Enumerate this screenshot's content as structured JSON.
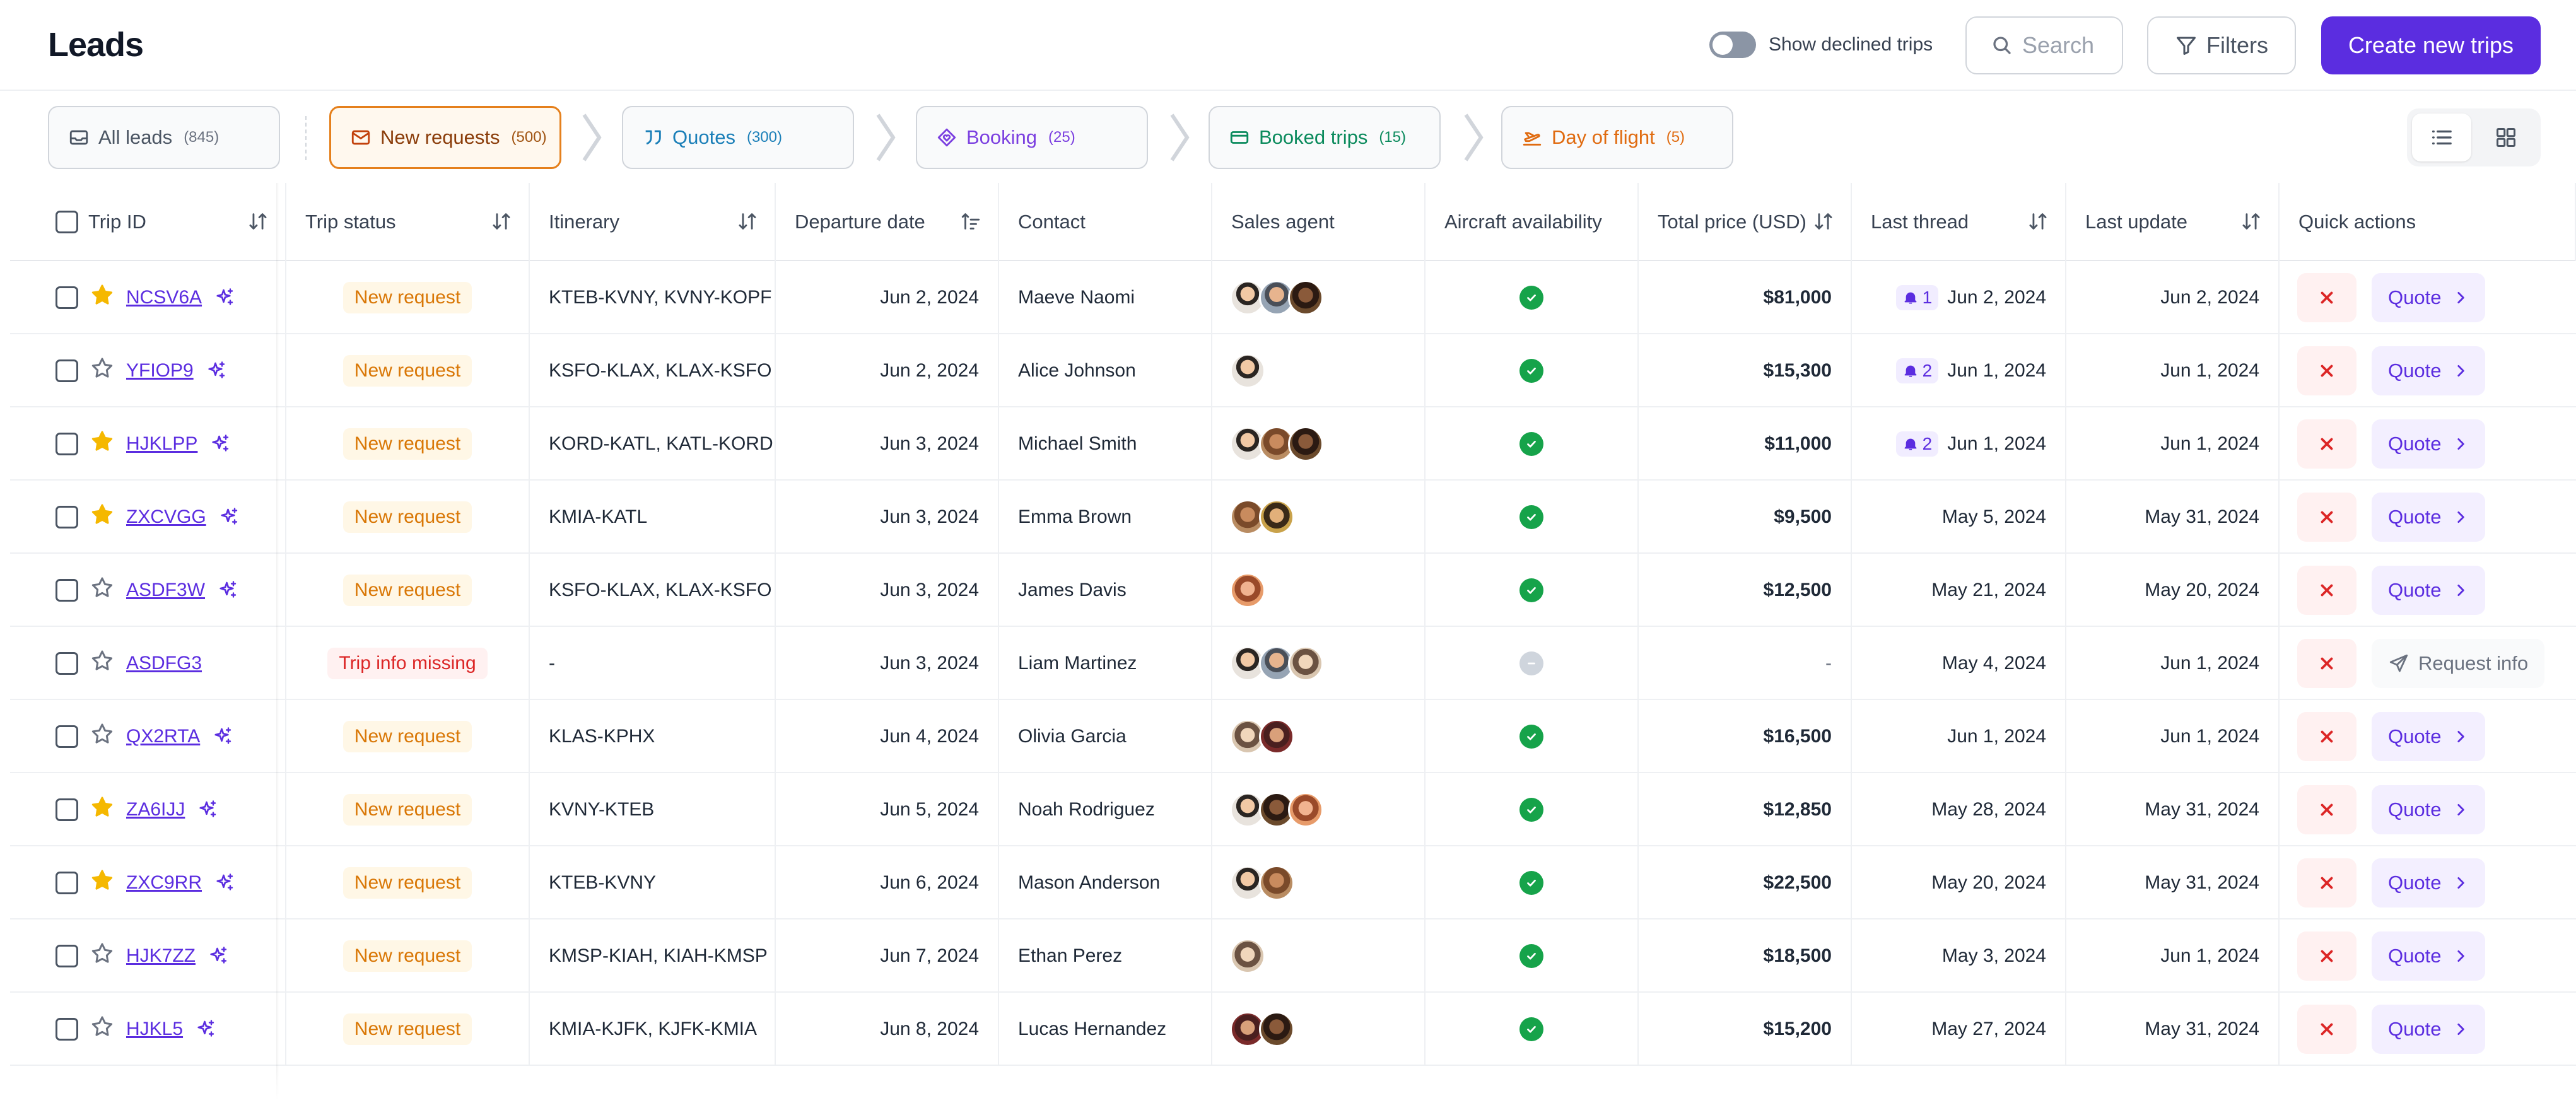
{
  "header": {
    "title": "Leads",
    "show_declined_label": "Show declined trips",
    "search_placeholder": "Search",
    "filters_label": "Filters",
    "create_label": "Create new trips"
  },
  "pipeline": {
    "stages": [
      {
        "label": "All leads",
        "count": "(845)",
        "icon": "inbox-icon"
      },
      {
        "label": "New requests",
        "count": "(500)",
        "icon": "mail-icon",
        "active": true
      },
      {
        "label": "Quotes",
        "count": "(300)",
        "icon": "quote-icon"
      },
      {
        "label": "Booking",
        "count": "(25)",
        "icon": "diamond-heart-icon"
      },
      {
        "label": "Booked trips",
        "count": "(15)",
        "icon": "ticket-icon"
      },
      {
        "label": "Day of flight",
        "count": "(5)",
        "icon": "plane-takeoff-icon"
      }
    ],
    "view_modes": [
      "list-view-icon",
      "grid-view-icon"
    ]
  },
  "table": {
    "columns": [
      "Trip ID",
      "Trip status",
      "Itinerary",
      "Departure date",
      "Contact",
      "Sales agent",
      "Aircraft availability",
      "Total price (USD)",
      "Last thread",
      "Last update",
      "Quick actions"
    ],
    "rows": [
      {
        "id": "NCSV6A",
        "starred": true,
        "status": "New request",
        "itinerary": "KTEB-KVNY, KVNY-KOPF",
        "departure": "Jun 2, 2024",
        "contact": "Maeve Naomi",
        "agents": [
          "av1",
          "av2",
          "av3"
        ],
        "available": true,
        "price": "$81,000",
        "thread_count": "1",
        "last_thread": "Jun 2, 2024",
        "last_update": "Jun 2, 2024",
        "action": "Quote"
      },
      {
        "id": "YFIOP9",
        "starred": false,
        "status": "New request",
        "itinerary": "KSFO-KLAX, KLAX-KSFO",
        "departure": "Jun 2, 2024",
        "contact": "Alice Johnson",
        "agents": [
          "av1"
        ],
        "available": true,
        "price": "$15,300",
        "thread_count": "2",
        "last_thread": "Jun 1, 2024",
        "last_update": "Jun 1, 2024",
        "action": "Quote"
      },
      {
        "id": "HJKLPP",
        "starred": true,
        "status": "New request",
        "itinerary": "KORD-KATL, KATL-KORD",
        "departure": "Jun 3, 2024",
        "contact": "Michael Smith",
        "agents": [
          "av1",
          "av4",
          "av3"
        ],
        "available": true,
        "price": "$11,000",
        "thread_count": "2",
        "last_thread": "Jun 1, 2024",
        "last_update": "Jun 1, 2024",
        "action": "Quote"
      },
      {
        "id": "ZXCVGG",
        "starred": true,
        "status": "New request",
        "itinerary": "KMIA-KATL",
        "departure": "Jun 3, 2024",
        "contact": "Emma Brown",
        "agents": [
          "av4",
          "av5"
        ],
        "available": true,
        "price": "$9,500",
        "thread_count": "",
        "last_thread": "May 5, 2024",
        "last_update": "May 31, 2024",
        "action": "Quote"
      },
      {
        "id": "ASDF3W",
        "starred": false,
        "status": "New request",
        "itinerary": "KSFO-KLAX, KLAX-KSFO",
        "departure": "Jun 3, 2024",
        "contact": "James Davis",
        "agents": [
          "av6"
        ],
        "available": true,
        "price": "$12,500",
        "thread_count": "",
        "last_thread": "May 21, 2024",
        "last_update": "May 20, 2024",
        "action": "Quote"
      },
      {
        "id": "ASDFG3",
        "starred": false,
        "status": "Trip info missing",
        "itinerary": "-",
        "departure": "Jun 3, 2024",
        "contact": "Liam Martinez",
        "agents": [
          "av1",
          "av2",
          "av7"
        ],
        "available": false,
        "price": "-",
        "thread_count": "",
        "last_thread": "May 4, 2024",
        "last_update": "Jun 1, 2024",
        "action": "Request info"
      },
      {
        "id": "QX2RTA",
        "starred": false,
        "status": "New request",
        "itinerary": "KLAS-KPHX",
        "departure": "Jun 4, 2024",
        "contact": "Olivia Garcia",
        "agents": [
          "av7",
          "av8"
        ],
        "available": true,
        "price": "$16,500",
        "thread_count": "",
        "last_thread": "Jun 1, 2024",
        "last_update": "Jun 1, 2024",
        "action": "Quote"
      },
      {
        "id": "ZA6IJJ",
        "starred": true,
        "status": "New request",
        "itinerary": "KVNY-KTEB",
        "departure": "Jun 5, 2024",
        "contact": "Noah Rodriguez",
        "agents": [
          "av1",
          "av3",
          "av6"
        ],
        "available": true,
        "price": "$12,850",
        "thread_count": "",
        "last_thread": "May 28, 2024",
        "last_update": "May 31, 2024",
        "action": "Quote"
      },
      {
        "id": "ZXC9RR",
        "starred": true,
        "status": "New request",
        "itinerary": "KTEB-KVNY",
        "departure": "Jun 6, 2024",
        "contact": "Mason Anderson",
        "agents": [
          "av1",
          "av4"
        ],
        "available": true,
        "price": "$22,500",
        "thread_count": "",
        "last_thread": "May 20, 2024",
        "last_update": "May 31, 2024",
        "action": "Quote"
      },
      {
        "id": "HJK7ZZ",
        "starred": false,
        "status": "New request",
        "itinerary": "KMSP-KIAH, KIAH-KMSP",
        "departure": "Jun 7, 2024",
        "contact": "Ethan Perez",
        "agents": [
          "av7"
        ],
        "available": true,
        "price": "$18,500",
        "thread_count": "",
        "last_thread": "May 3, 2024",
        "last_update": "Jun 1, 2024",
        "action": "Quote"
      },
      {
        "id": "HJKL5",
        "starred": false,
        "status": "New request",
        "itinerary": "KMIA-KJFK, KJFK-KMIA",
        "departure": "Jun 8, 2024",
        "contact": "Lucas Hernandez",
        "agents": [
          "av8",
          "av3"
        ],
        "available": true,
        "price": "$15,200",
        "thread_count": "",
        "last_thread": "May 27, 2024",
        "last_update": "May 31, 2024",
        "action": "Quote"
      }
    ]
  },
  "colors": {
    "brand": "#5b2de0",
    "new_request": "#d97706",
    "missing": "#dc2626",
    "available": "#16a34a"
  }
}
